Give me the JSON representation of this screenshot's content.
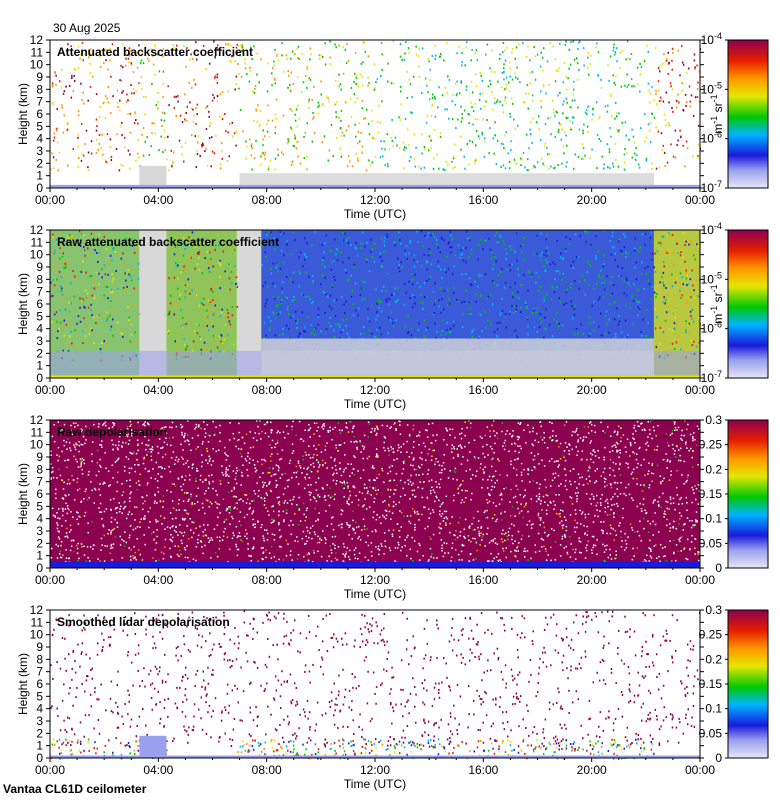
{
  "date": "30 Aug 2025",
  "footer": "Vantaa CL61D ceilometer",
  "chart_data": [
    {
      "type": "heatmap",
      "title": "Attenuated backscatter coefficient",
      "xlabel": "Time (UTC)",
      "ylabel": "Height (km)",
      "xticks": [
        "00:00",
        "04:00",
        "08:00",
        "12:00",
        "16:00",
        "20:00",
        "00:00"
      ],
      "yticks": [
        "0",
        "1",
        "2",
        "3",
        "4",
        "5",
        "6",
        "7",
        "8",
        "9",
        "10",
        "11",
        "12"
      ],
      "ylim": [
        0,
        12
      ],
      "xlim_hours": [
        0,
        24
      ],
      "colorbar": {
        "scale": "log",
        "unit_base": "m",
        "unit_exp1": "-1",
        "unit_mid": " sr",
        "unit_exp2": "-1",
        "ticks": [
          {
            "base": "10",
            "exp": "-4"
          },
          {
            "base": "10",
            "exp": "-5"
          },
          {
            "base": "10",
            "exp": "-6"
          },
          {
            "base": "10",
            "exp": "-7"
          }
        ]
      }
    },
    {
      "type": "heatmap",
      "title": "Raw attenuated backscatter coefficient",
      "xlabel": "Time (UTC)",
      "ylabel": "Height (km)",
      "xticks": [
        "00:00",
        "04:00",
        "08:00",
        "12:00",
        "16:00",
        "20:00",
        "00:00"
      ],
      "yticks": [
        "0",
        "1",
        "2",
        "3",
        "4",
        "5",
        "6",
        "7",
        "8",
        "9",
        "10",
        "11",
        "12"
      ],
      "ylim": [
        0,
        12
      ],
      "xlim_hours": [
        0,
        24
      ],
      "colorbar": {
        "scale": "log",
        "unit_base": "m",
        "unit_exp1": "-1",
        "unit_mid": " sr",
        "unit_exp2": "-1",
        "ticks": [
          {
            "base": "10",
            "exp": "-4"
          },
          {
            "base": "10",
            "exp": "-5"
          },
          {
            "base": "10",
            "exp": "-6"
          },
          {
            "base": "10",
            "exp": "-7"
          }
        ]
      }
    },
    {
      "type": "heatmap",
      "title": "Raw depolarisation",
      "xlabel": "Time (UTC)",
      "ylabel": "Height (km)",
      "xticks": [
        "00:00",
        "04:00",
        "08:00",
        "12:00",
        "16:00",
        "20:00",
        "00:00"
      ],
      "yticks": [
        "0",
        "1",
        "2",
        "3",
        "4",
        "5",
        "6",
        "7",
        "8",
        "9",
        "10",
        "11",
        "12"
      ],
      "ylim": [
        0,
        12
      ],
      "xlim_hours": [
        0,
        24
      ],
      "colorbar": {
        "scale": "linear",
        "range": [
          0,
          0.3
        ],
        "ticks": [
          "0.3",
          "0.25",
          "0.2",
          "0.15",
          "0.1",
          "0.05",
          "0"
        ]
      }
    },
    {
      "type": "heatmap",
      "title": "Smoothed lidar depolarisation",
      "xlabel": "Time (UTC)",
      "ylabel": "Height (km)",
      "xticks": [
        "00:00",
        "04:00",
        "08:00",
        "12:00",
        "16:00",
        "20:00",
        "00:00"
      ],
      "yticks": [
        "0",
        "1",
        "2",
        "3",
        "4",
        "5",
        "6",
        "7",
        "8",
        "9",
        "10",
        "11",
        "12"
      ],
      "ylim": [
        0,
        12
      ],
      "xlim_hours": [
        0,
        24
      ],
      "colorbar": {
        "scale": "linear",
        "range": [
          0,
          0.3
        ],
        "ticks": [
          "0.3",
          "0.25",
          "0.2",
          "0.15",
          "0.1",
          "0.05",
          "0"
        ]
      }
    }
  ]
}
